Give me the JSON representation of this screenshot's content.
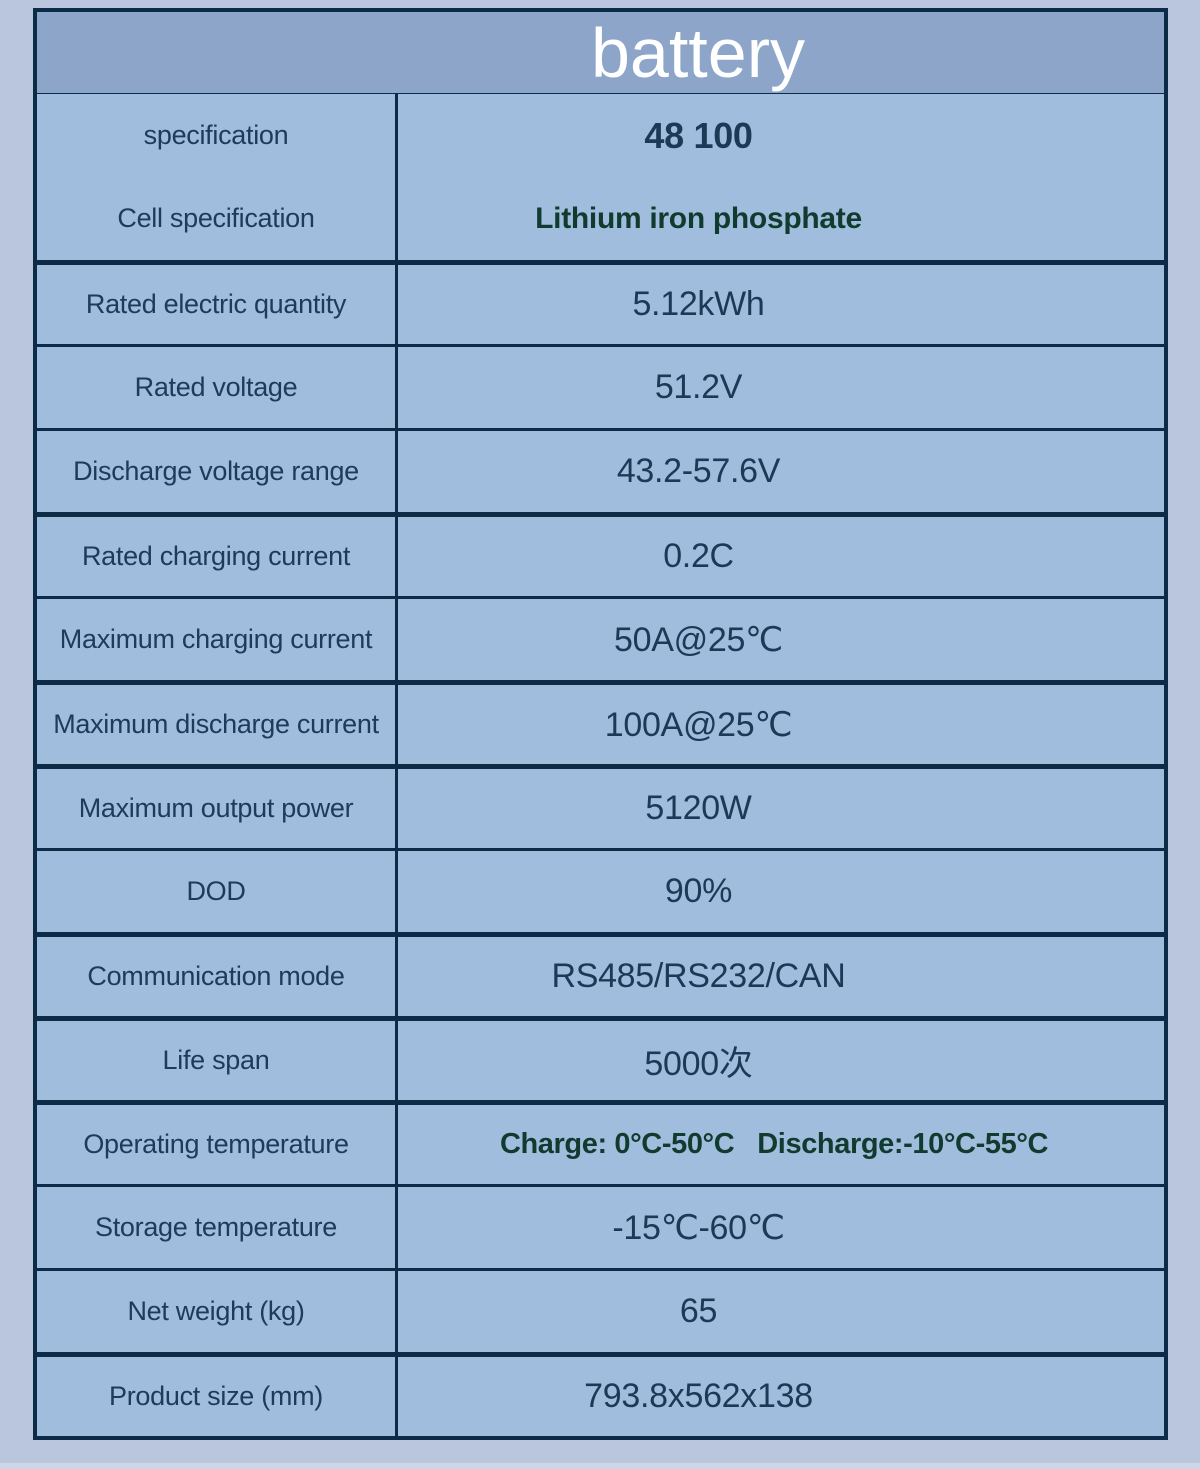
{
  "theme": {
    "page_bg": "#b9c6dd",
    "header_bg": "#8ca5c9",
    "cell_bg": "#a0bddd",
    "border_color": "#0c2b47",
    "label_color": "#203a5c",
    "value_color": "#1a3a55",
    "green_color": "#123b30",
    "title_color": "#ffffff",
    "bottom_strip": "#cdd7e8"
  },
  "header": {
    "title": "battery"
  },
  "table": {
    "rows": [
      {
        "label": "specification",
        "value": "48 100"
      },
      {
        "label": "Cell specification",
        "value": "Lithium iron phosphate"
      },
      {
        "label": "Rated electric quantity",
        "value": "5.12kWh"
      },
      {
        "label": "Rated voltage",
        "value": "51.2V"
      },
      {
        "label": "Discharge voltage range",
        "value": "43.2-57.6V"
      },
      {
        "label": "Rated charging current",
        "value": "0.2C"
      },
      {
        "label": "Maximum charging current",
        "value": "50A@25℃"
      },
      {
        "label": "Maximum discharge current",
        "value": "100A@25℃"
      },
      {
        "label": "Maximum output power",
        "value": "5120W"
      },
      {
        "label": "DOD",
        "value": "90%"
      },
      {
        "label": "Communication mode",
        "value": "RS485/RS232/CAN"
      },
      {
        "label": "Life span",
        "value": "5000次"
      },
      {
        "label": "Operating temperature",
        "value": "Charge: 0°C-50°C   Discharge:-10°C-55°C"
      },
      {
        "label": "Storage temperature",
        "value": "-15℃-60℃"
      },
      {
        "label": "Net weight (kg)",
        "value": "65"
      },
      {
        "label": "Product size (mm)",
        "value": "793.8x562x138"
      }
    ]
  }
}
